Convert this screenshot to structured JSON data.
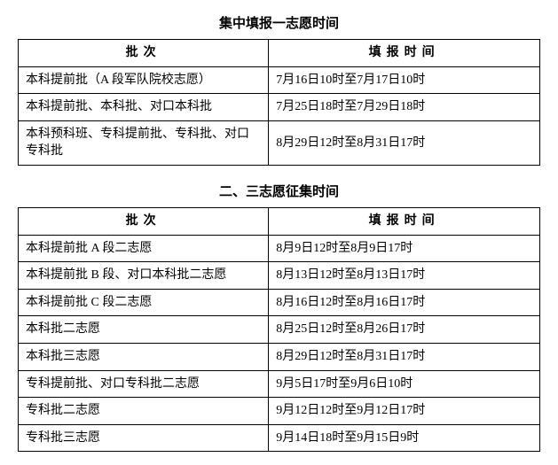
{
  "tables": [
    {
      "title": "集中填报一志愿时间",
      "columns": [
        "批次",
        "填报时间"
      ],
      "rows": [
        [
          "本科提前批（A 段军队院校志愿）",
          "7月16日10时至7月17日10时"
        ],
        [
          "本科提前批、本科批、对口本科批",
          "7月25日18时至7月29日18时"
        ],
        [
          "本科预科班、专科提前批、专科批、对口专科批",
          "8月29日12时至8月31日17时"
        ]
      ]
    },
    {
      "title": "二、三志愿征集时间",
      "columns": [
        "批次",
        "填报时间"
      ],
      "rows": [
        [
          "本科提前批 A 段二志愿",
          "8月9日12时至8月9日17时"
        ],
        [
          "本科提前批 B 段、对口本科批二志愿",
          "8月13日12时至8月13日17时"
        ],
        [
          "本科提前批 C 段二志愿",
          "8月16日12时至8月16日17时"
        ],
        [
          "本科批二志愿",
          "8月25日12时至8月26日17时"
        ],
        [
          "本科批三志愿",
          "8月29日12时至8月31日17时"
        ],
        [
          "专科提前批、对口专科批二志愿",
          "9月5日17时至9月6日10时"
        ],
        [
          "专科批二志愿",
          "9月12日12时至9月12日17时"
        ],
        [
          "专科批三志愿",
          "9月14日18时至9月15日9时"
        ]
      ]
    }
  ],
  "style": {
    "background_color": "#ffffff",
    "text_color": "#000000",
    "border_color": "#000000",
    "title_fontsize": 15,
    "cell_fontsize": 14,
    "font_family": "SimSun"
  }
}
